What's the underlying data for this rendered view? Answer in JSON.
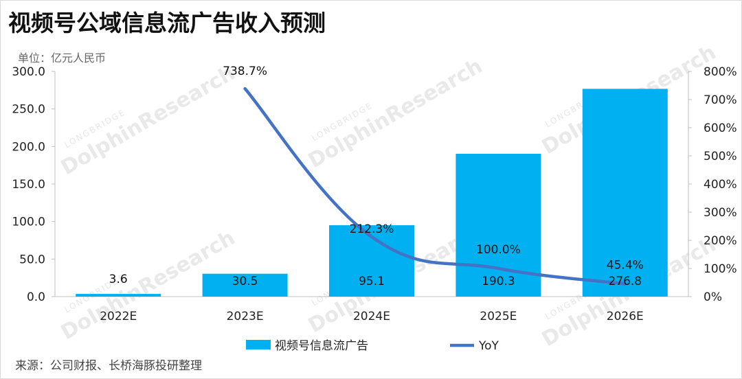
{
  "title": "视频号公域信息流广告收入预测",
  "unit_label": "单位：亿元人民币",
  "source_label": "来源：公司财报、长桥海豚投研整理",
  "watermark": {
    "brand": "DolphinResearch",
    "sub": "LONGBRIDGE"
  },
  "colors": {
    "bar": "#00b0f0",
    "line": "#4472c4",
    "axis": "#bfbfbf"
  },
  "chart_data": {
    "type": "bar+line",
    "categories": [
      "2022E",
      "2023E",
      "2024E",
      "2025E",
      "2026E"
    ],
    "series": [
      {
        "name": "视频号信息流广告",
        "type": "bar",
        "axis": "left",
        "values": [
          3.6,
          30.5,
          95.1,
          190.3,
          276.8
        ],
        "labels": [
          "3.6",
          "30.5",
          "95.1",
          "190.3",
          "276.8"
        ]
      },
      {
        "name": "YoY",
        "type": "line",
        "axis": "right",
        "values": [
          null,
          738.7,
          212.3,
          100.0,
          45.4
        ],
        "labels": [
          "",
          "738.7%",
          "212.3%",
          "100.0%",
          "45.4%"
        ]
      }
    ],
    "y_left": {
      "min": 0,
      "max": 300,
      "ticks": [
        "0.0",
        "50.0",
        "100.0",
        "150.0",
        "200.0",
        "250.0",
        "300.0"
      ]
    },
    "y_right": {
      "min": 0,
      "max": 800,
      "ticks": [
        "0%",
        "100%",
        "200%",
        "300%",
        "400%",
        "500%",
        "600%",
        "700%",
        "800%"
      ]
    },
    "legend_position": "bottom",
    "grid": false
  }
}
